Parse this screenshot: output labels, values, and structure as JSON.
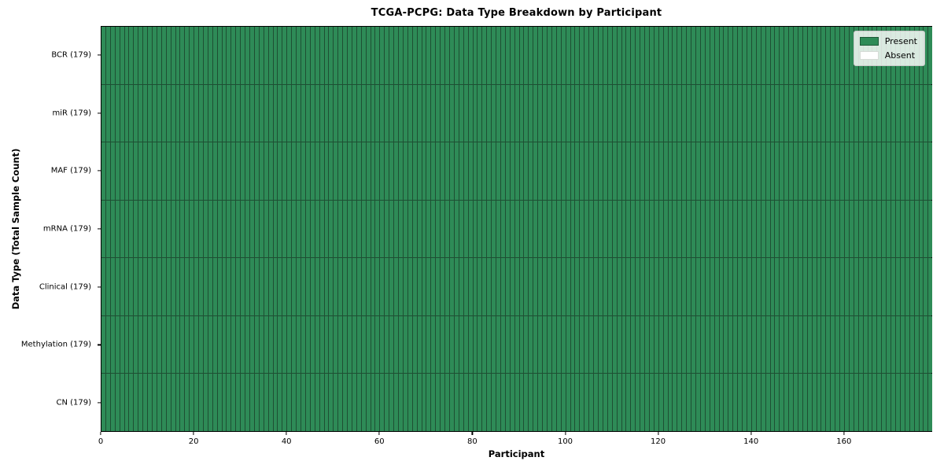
{
  "colors": {
    "present": "#2e8b57",
    "absent": "#ffffff",
    "cell_edge": "#1e4f33",
    "plot_border": "#000000",
    "legend_border": "#c9c9c9",
    "text": "#000000"
  },
  "chart_data": {
    "type": "heatmap",
    "title": "TCGA-PCPG: Data Type Breakdown by Participant",
    "xlabel": "Participant",
    "ylabel": "Data Type (Total Sample Count)",
    "x_range": [
      0,
      179
    ],
    "x_ticks": [
      0,
      20,
      40,
      60,
      80,
      100,
      120,
      140,
      160
    ],
    "n_participants": 179,
    "categories_y": [
      "BCR (179)",
      "miR (179)",
      "MAF (179)",
      "mRNA (179)",
      "Clinical (179)",
      "Methylation (179)",
      "CN (179)"
    ],
    "rows": [
      {
        "label": "BCR (179)",
        "data_type": "BCR",
        "total_samples": 179,
        "present_count": 179,
        "absent_count": 0
      },
      {
        "label": "miR (179)",
        "data_type": "miR",
        "total_samples": 179,
        "present_count": 179,
        "absent_count": 0
      },
      {
        "label": "MAF (179)",
        "data_type": "MAF",
        "total_samples": 179,
        "present_count": 179,
        "absent_count": 0
      },
      {
        "label": "mRNA (179)",
        "data_type": "mRNA",
        "total_samples": 179,
        "present_count": 179,
        "absent_count": 0
      },
      {
        "label": "Clinical (179)",
        "data_type": "Clinical",
        "total_samples": 179,
        "present_count": 179,
        "absent_count": 0
      },
      {
        "label": "Methylation (179)",
        "data_type": "Methylation",
        "total_samples": 179,
        "present_count": 179,
        "absent_count": 0
      },
      {
        "label": "CN (179)",
        "data_type": "CN",
        "total_samples": 179,
        "present_count": 179,
        "absent_count": 0
      }
    ],
    "all_cells_present": true,
    "cell_values": {
      "present": 1,
      "absent": 0
    },
    "grid_lines": "cell-edges-on",
    "legend": {
      "position": "upper-right",
      "entries": [
        {
          "label": "Present",
          "color": "#2e8b57"
        },
        {
          "label": "Absent",
          "color": "#ffffff"
        }
      ]
    }
  }
}
